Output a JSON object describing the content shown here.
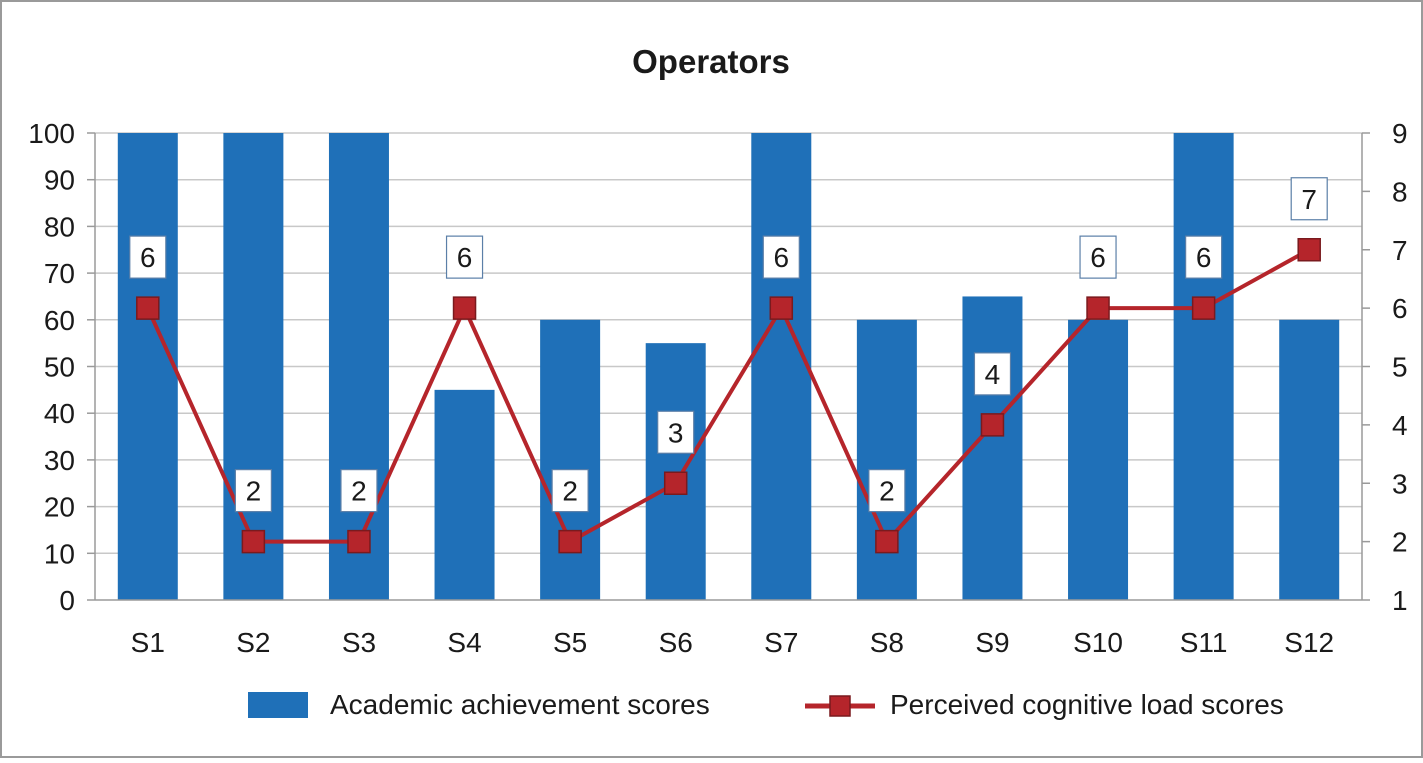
{
  "chart_data": {
    "type": "bar",
    "title": "Operators",
    "categories": [
      "S1",
      "S2",
      "S3",
      "S4",
      "S5",
      "S6",
      "S7",
      "S8",
      "S9",
      "S10",
      "S11",
      "S12"
    ],
    "series": [
      {
        "name": "Academic achievement scores",
        "type": "bar",
        "axis": "left",
        "color": "#1f70b8",
        "values": [
          100,
          100,
          100,
          45,
          60,
          55,
          100,
          60,
          65,
          60,
          100,
          60
        ]
      },
      {
        "name": "Perceived cognitive load scores",
        "type": "line",
        "axis": "right",
        "marker": "square",
        "color": "#b5252b",
        "values": [
          6,
          2,
          2,
          6,
          2,
          3,
          6,
          2,
          4,
          6,
          6,
          7
        ],
        "labels": [
          "6",
          "2",
          "2",
          "6",
          "2",
          "3",
          "6",
          "2",
          "4",
          "6",
          "6",
          "7"
        ]
      }
    ],
    "y_left": {
      "ylim": [
        0,
        100
      ],
      "ticks": [
        "0",
        "10",
        "20",
        "30",
        "40",
        "50",
        "60",
        "70",
        "80",
        "90",
        "100"
      ]
    },
    "y_right": {
      "ylim": [
        1,
        9
      ],
      "ticks": [
        "1",
        "2",
        "3",
        "4",
        "5",
        "6",
        "7",
        "8",
        "9"
      ]
    },
    "grid": true,
    "legend_position": "bottom"
  }
}
